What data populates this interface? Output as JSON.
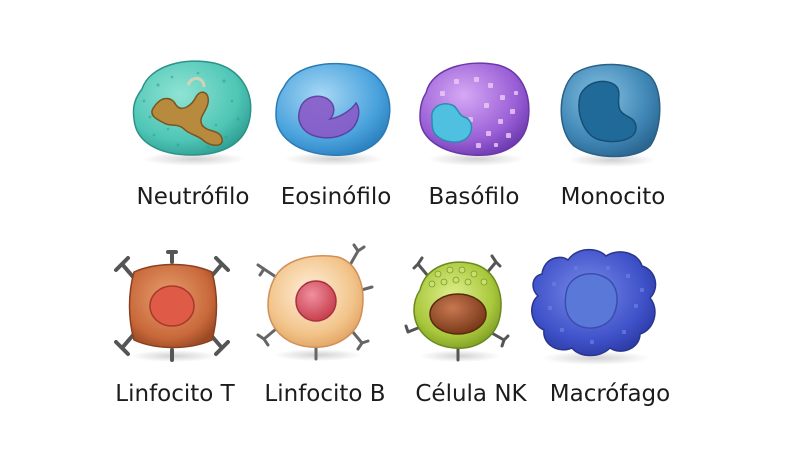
{
  "rows": [
    {
      "cells": [
        {
          "name": "neutrofilo",
          "label": "Neutrófilo",
          "icon": "neutrophil-cell-icon"
        },
        {
          "name": "eosinofilo",
          "label": "Eosinófilo",
          "icon": "eosinophil-cell-icon"
        },
        {
          "name": "basofilo",
          "label": "Basófilo",
          "icon": "basophil-cell-icon"
        },
        {
          "name": "monocito",
          "label": "Monocito",
          "icon": "monocyte-cell-icon"
        }
      ]
    },
    {
      "cells": [
        {
          "name": "linfocito-t",
          "label": "Linfocito T",
          "icon": "t-lymphocyte-cell-icon"
        },
        {
          "name": "linfocito-b",
          "label": "Linfocito B",
          "icon": "b-lymphocyte-cell-icon"
        },
        {
          "name": "celula-nk",
          "label": "Célula NK",
          "icon": "nk-cell-icon"
        },
        {
          "name": "macrofago",
          "label": "Macrófago",
          "icon": "macrophage-cell-icon"
        }
      ]
    }
  ],
  "colors": {
    "neutrophil": "#4fc6b6",
    "eosinophil": "#4aa3dd",
    "basophil": "#9a5fd6",
    "monocyte": "#3f86b5",
    "t_cell": "#c8683a",
    "b_cell": "#f2c48a",
    "nk_cell": "#a9c83c",
    "macrophage": "#3f52c9",
    "text": "#1c1c1c"
  }
}
